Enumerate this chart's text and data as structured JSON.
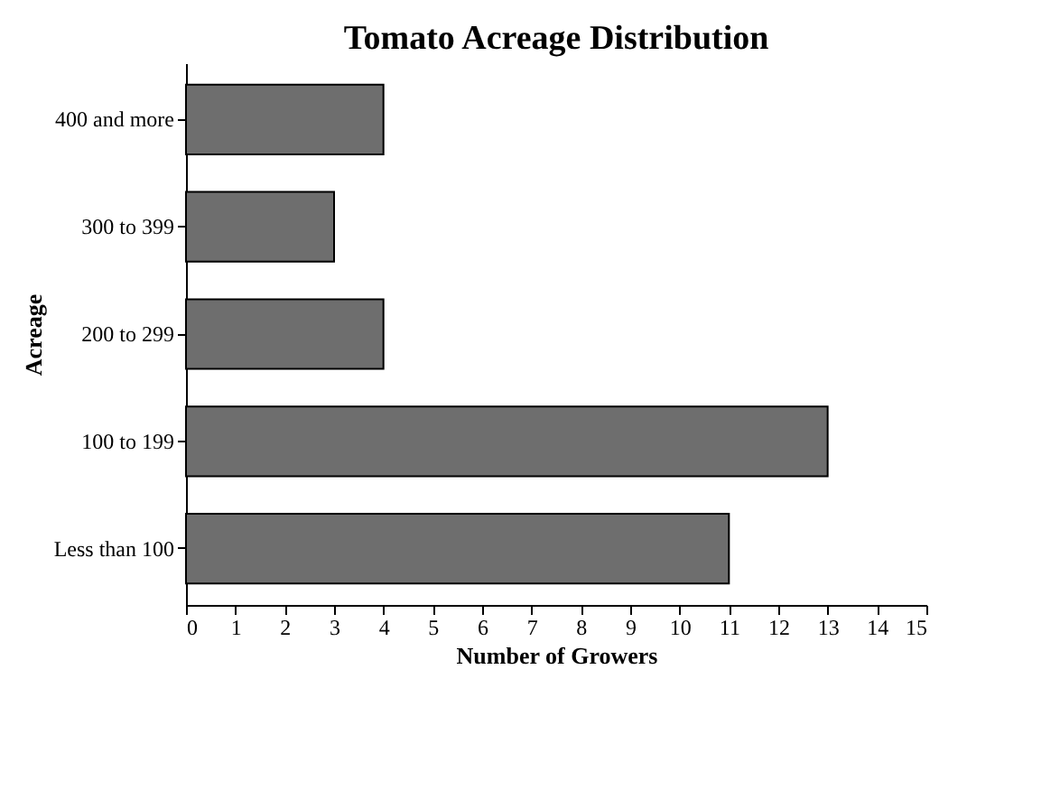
{
  "chart_data": {
    "type": "bar",
    "orientation": "horizontal",
    "title": "Tomato Acreage Distribution",
    "xlabel": "Number of Growers",
    "ylabel": "Acreage",
    "categories": [
      "400 and more",
      "300 to 399",
      "200 to 299",
      "100 to 199",
      "Less than 100"
    ],
    "values": [
      4,
      3,
      4,
      13,
      11
    ],
    "color": "#6e6e6e",
    "xlim": [
      0,
      15
    ],
    "xticks": [
      0,
      1,
      2,
      3,
      4,
      5,
      6,
      7,
      8,
      9,
      10,
      11,
      12,
      13,
      14,
      15
    ],
    "grid": false
  }
}
